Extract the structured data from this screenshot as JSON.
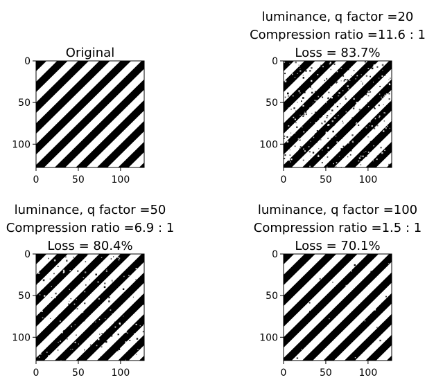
{
  "chart_data": [
    {
      "type": "image",
      "title_lines": [
        "Original"
      ],
      "xticks": [
        0,
        50,
        100
      ],
      "yticks": [
        0,
        50,
        100
      ],
      "xlim": [
        0,
        128
      ],
      "ylim": [
        128,
        0
      ],
      "stripe_period": 25,
      "noise": 0.0
    },
    {
      "type": "image",
      "title_lines": [
        "luminance, q factor =20",
        "Compression ratio =11.6 : 1",
        "Loss = 83.7%"
      ],
      "xticks": [
        0,
        50,
        100
      ],
      "yticks": [
        0,
        50,
        100
      ],
      "xlim": [
        0,
        128
      ],
      "ylim": [
        128,
        0
      ],
      "stripe_period": 25,
      "noise": 0.35
    },
    {
      "type": "image",
      "title_lines": [
        "luminance, q factor =50",
        "Compression ratio =6.9 : 1",
        "Loss = 80.4%"
      ],
      "xticks": [
        0,
        50,
        100
      ],
      "yticks": [
        0,
        50,
        100
      ],
      "xlim": [
        0,
        128
      ],
      "ylim": [
        128,
        0
      ],
      "stripe_period": 25,
      "noise": 0.15
    },
    {
      "type": "image",
      "title_lines": [
        "luminance, q factor =100",
        "Compression ratio =1.5 : 1",
        "Loss = 70.1%"
      ],
      "xticks": [
        0,
        50,
        100
      ],
      "yticks": [
        0,
        50,
        100
      ],
      "xlim": [
        0,
        128
      ],
      "ylim": [
        128,
        0
      ],
      "stripe_period": 25,
      "noise": 0.03
    }
  ]
}
